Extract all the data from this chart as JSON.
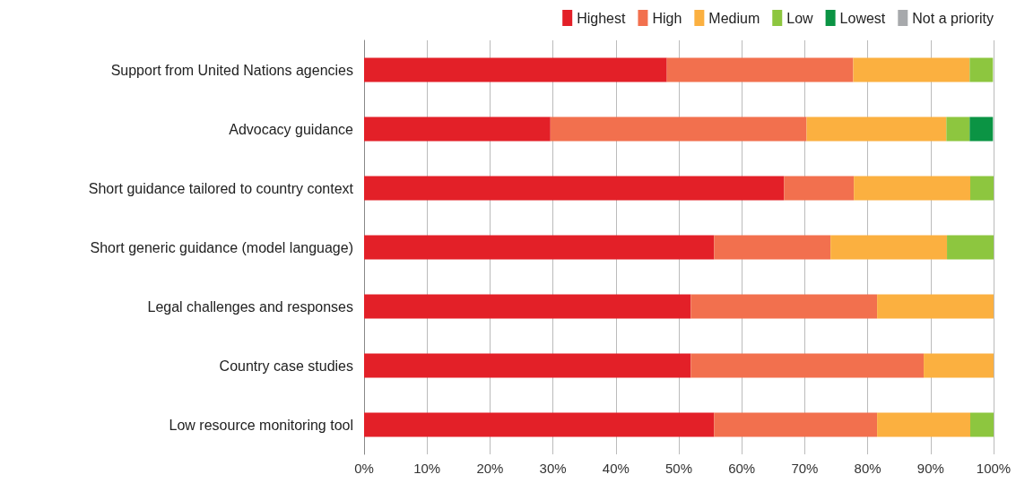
{
  "chart_data": {
    "type": "bar",
    "orientation": "horizontal",
    "stacked": true,
    "legend": "top right",
    "grid": "x",
    "categories": [
      "Support from United Nations agencies",
      "Advocacy guidance",
      "Short guidance tailored to country context",
      "Short generic guidance (model language)",
      "Legal challenges and responses",
      "Country case studies",
      "Low resource monitoring tool"
    ],
    "series": [
      {
        "name": "Highest",
        "color": "#e32028",
        "values": [
          48.1,
          29.6,
          66.7,
          55.6,
          51.9,
          51.9,
          55.6
        ]
      },
      {
        "name": "High",
        "color": "#f2704e",
        "values": [
          29.6,
          40.7,
          11.1,
          18.5,
          29.6,
          37.0,
          25.9
        ]
      },
      {
        "name": "Medium",
        "color": "#fbb040",
        "values": [
          18.5,
          22.2,
          18.5,
          18.5,
          18.5,
          11.1,
          14.8
        ]
      },
      {
        "name": "Low",
        "color": "#8dc63f",
        "values": [
          3.7,
          3.7,
          3.7,
          7.4,
          0,
          0,
          3.7
        ]
      },
      {
        "name": "Lowest",
        "color": "#0b9444",
        "values": [
          0,
          3.7,
          0,
          0,
          0,
          0,
          0
        ]
      },
      {
        "name": "Not a priority",
        "color": "#a7a9ac",
        "values": [
          0,
          0,
          0,
          0,
          0,
          0,
          0
        ]
      }
    ],
    "xlim": [
      0,
      100
    ],
    "xticks": [
      {
        "value": 0,
        "label": "0%"
      },
      {
        "value": 10,
        "label": "10%"
      },
      {
        "value": 20,
        "label": "20%"
      },
      {
        "value": 30,
        "label": "30%"
      },
      {
        "value": 40,
        "label": "40%"
      },
      {
        "value": 50,
        "label": "50%"
      },
      {
        "value": 60,
        "label": "60%"
      },
      {
        "value": 70,
        "label": "70%"
      },
      {
        "value": 80,
        "label": "80%"
      },
      {
        "value": 90,
        "label": "90%"
      },
      {
        "value": 100,
        "label": "100%"
      }
    ]
  }
}
